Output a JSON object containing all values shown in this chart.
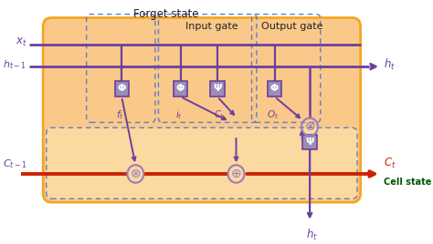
{
  "bg_color": "#FFFFFF",
  "orange_fill": "#FAC98A",
  "orange_edge": "#F5A623",
  "purple": "#6B3FA0",
  "purple_light": "#9B7BC0",
  "red": "#CC2200",
  "dashed_blue": "#5B7FC4",
  "box_fill": "#9B8DB5",
  "box_edge": "#6B3FA0",
  "label_forget": "Forget state",
  "label_input": "Input gate",
  "label_output": "Output gate",
  "label_cell": "Cell state",
  "label_xt": "$x_t$",
  "label_ht1": "$h_{t-1}$",
  "label_ht_r": "$h_t$",
  "label_Ct1": "$C_{t-1}$",
  "label_Ct": "$C_t$",
  "label_ft": "$f_t$",
  "label_it": "$i_t$",
  "label_Ct_tilde": "$C_t$",
  "label_Ot": "$O_t$",
  "label_ht_b": "$h_t$"
}
